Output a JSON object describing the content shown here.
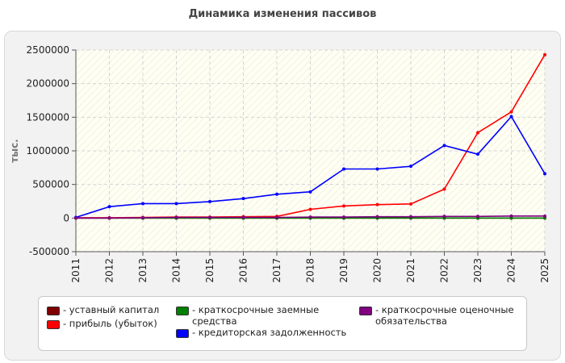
{
  "title": "Динамика изменения пассивов",
  "chart_data": {
    "type": "line",
    "ylabel": "тыс.",
    "xlabel": "",
    "ylim": [
      -500000,
      2500000
    ],
    "y_ticks": [
      "2500000",
      "2000000",
      "1500000",
      "1000000",
      "500000",
      "0",
      "-500000"
    ],
    "y_tick_values": [
      2500000,
      2000000,
      1500000,
      1000000,
      500000,
      0,
      -500000
    ],
    "categories": [
      "2011",
      "2012",
      "2013",
      "2014",
      "2015",
      "2016",
      "2017",
      "2018",
      "2019",
      "2020",
      "2021",
      "2022",
      "2023",
      "2024",
      "2025"
    ],
    "grid": true,
    "legend_position": "bottom",
    "series": [
      {
        "name": "- уставный капитал",
        "color": "#800000",
        "values": [
          10,
          10,
          10,
          10,
          10,
          10,
          10,
          10,
          10,
          10,
          10,
          10,
          10,
          10,
          10
        ]
      },
      {
        "name": "- прибыль (убыток)",
        "color": "#ff0000",
        "values": [
          5000,
          5000,
          10000,
          15000,
          15000,
          20000,
          25000,
          130000,
          180000,
          200000,
          210000,
          430000,
          1270000,
          1580000,
          2430000
        ]
      },
      {
        "name": "- краткосрочные заемные средства",
        "color": "#008000",
        "values": [
          0,
          0,
          0,
          0,
          0,
          0,
          0,
          0,
          0,
          0,
          0,
          0,
          0,
          0,
          0
        ]
      },
      {
        "name": "- кредиторская задолженность",
        "color": "#0000ff",
        "values": [
          10000,
          170000,
          215000,
          215000,
          245000,
          290000,
          355000,
          390000,
          730000,
          730000,
          770000,
          1080000,
          950000,
          1510000,
          660000
        ]
      },
      {
        "name": "- краткосрочные оценочные обязательства",
        "color": "#800080",
        "values": [
          0,
          0,
          5000,
          10000,
          10000,
          10000,
          10000,
          15000,
          15000,
          20000,
          20000,
          25000,
          25000,
          30000,
          30000
        ]
      }
    ]
  },
  "legend": {
    "items": [
      {
        "label": "- уставный капитал",
        "color": "#800000"
      },
      {
        "label": "- прибыль (убыток)",
        "color": "#ff0000"
      },
      {
        "label": "- краткосрочные заемные средства",
        "color": "#008000"
      },
      {
        "label": "- кредиторская задолженность",
        "color": "#0000ff"
      },
      {
        "label": "- краткосрочные оценочные обязательства",
        "color": "#800080"
      }
    ]
  }
}
